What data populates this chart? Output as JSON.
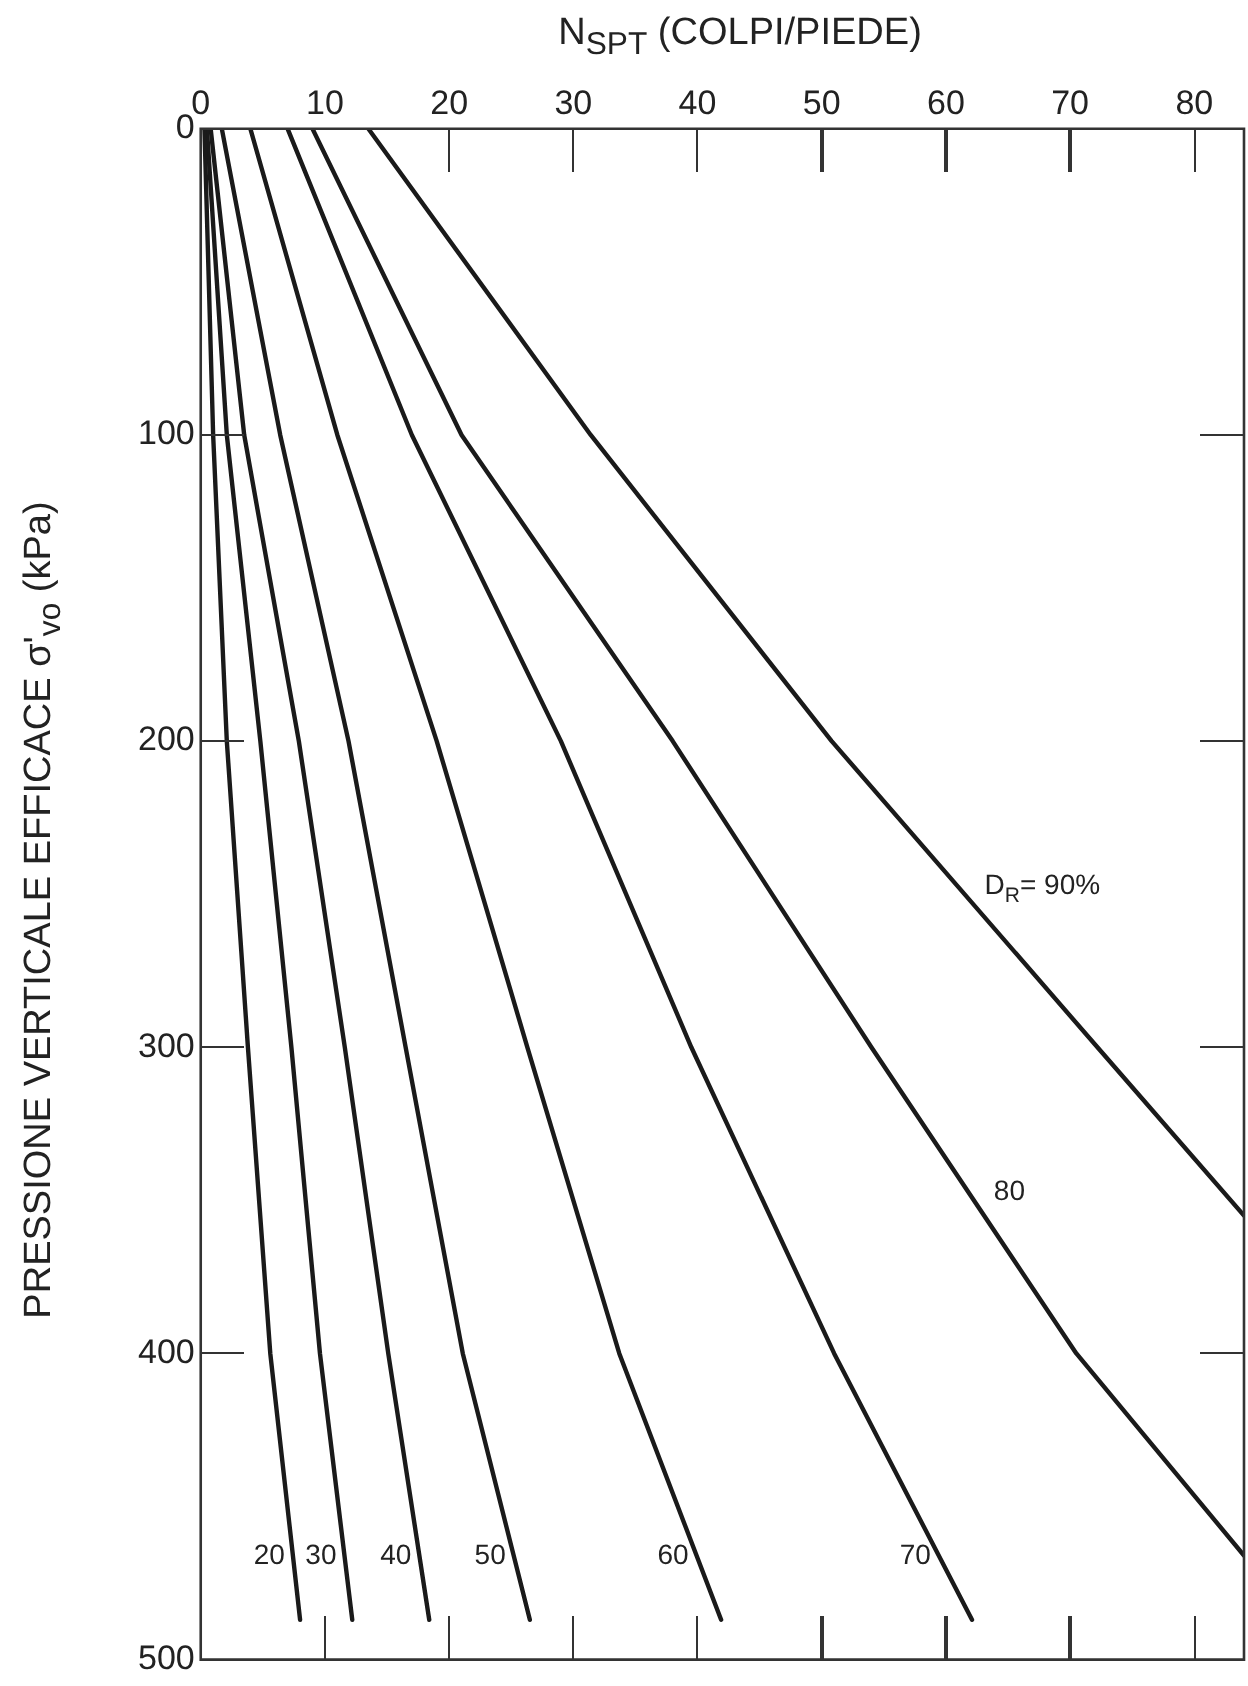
{
  "chart_data": {
    "type": "line",
    "xlabel": "N$_{SPT}$ (COLPI/PIEDE)",
    "ylabel": "PRESSIONE VERTICALE EFFICACE σ'$_{vo}$ (kPa)",
    "series": [
      {
        "name": "20",
        "color": "#1a1a1a",
        "x": [
          0.3,
          1.0,
          2.1,
          3.8,
          5.6,
          8.0
        ],
        "values": [
          0,
          100,
          200,
          300,
          400,
          487
        ]
      },
      {
        "name": "30",
        "color": "#1a1a1a",
        "x": [
          0.5,
          2.1,
          4.8,
          7.3,
          9.6,
          12.2
        ],
        "values": [
          0,
          100,
          200,
          300,
          400,
          487
        ]
      },
      {
        "name": "40",
        "color": "#1a1a1a",
        "x": [
          0.8,
          3.5,
          7.9,
          11.6,
          15.1,
          18.4
        ],
        "values": [
          0,
          100,
          200,
          300,
          400,
          487
        ]
      },
      {
        "name": "50",
        "color": "#1a1a1a",
        "x": [
          1.7,
          6.4,
          11.9,
          16.5,
          21.1,
          26.5
        ],
        "values": [
          0,
          100,
          200,
          300,
          400,
          487
        ]
      },
      {
        "name": "60",
        "color": "#1a1a1a",
        "x": [
          4,
          11,
          19,
          26.3,
          33.7,
          41.9
        ],
        "values": [
          0,
          100,
          200,
          300,
          400,
          487
        ]
      },
      {
        "name": "70",
        "color": "#1a1a1a",
        "x": [
          7,
          17,
          29,
          39.5,
          51,
          62.1
        ],
        "values": [
          0,
          100,
          200,
          300,
          400,
          487
        ]
      },
      {
        "name": "80",
        "color": "#1a1a1a",
        "x": [
          9,
          21,
          38,
          54,
          70.5,
          84
        ],
        "values": [
          0,
          100,
          200,
          300,
          400,
          466
        ]
      },
      {
        "name": "D$_{R}$= 90%",
        "color": "#1a1a1a",
        "x": [
          13.5,
          31.4,
          50.8,
          72.2,
          84
        ],
        "values": [
          0,
          100,
          200,
          300,
          355
        ]
      }
    ],
    "xlim": [
      0,
      84
    ],
    "ylim": [
      500,
      0
    ],
    "xticks": [
      0,
      10,
      20,
      30,
      40,
      50,
      60,
      70,
      80
    ],
    "yticks": [
      0,
      100,
      200,
      300,
      400,
      500
    ],
    "grid": false,
    "legend": false,
    "marker": "none",
    "line_style": "solid"
  }
}
